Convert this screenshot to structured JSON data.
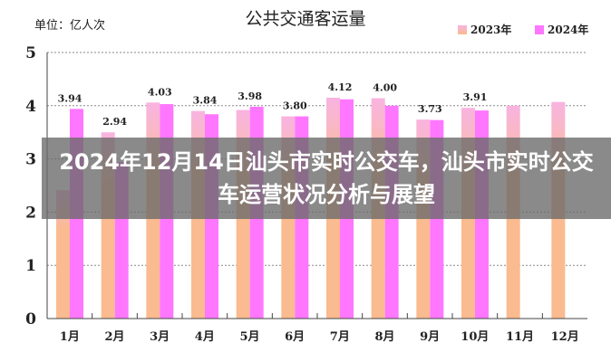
{
  "chart_data": {
    "type": "bar",
    "title": "公共交通客运量",
    "unit_label": "单位：亿人次",
    "categories": [
      "1月",
      "2月",
      "3月",
      "4月",
      "5月",
      "6月",
      "7月",
      "8月",
      "9月",
      "10月",
      "11月",
      "12月"
    ],
    "series": [
      {
        "name": "2023年",
        "color": "#f9b8c8",
        "values": [
          2.41,
          3.5,
          4.06,
          3.9,
          3.92,
          3.8,
          4.15,
          4.14,
          3.74,
          3.96,
          4.0,
          4.07
        ]
      },
      {
        "name": "2024年",
        "color": "#ff77ff",
        "values": [
          3.94,
          2.94,
          4.03,
          3.84,
          3.98,
          3.8,
          4.12,
          4.0,
          3.73,
          3.91,
          null,
          null
        ],
        "data_labels": [
          "3.94",
          "2.94",
          "4.03",
          "3.84",
          "3.98",
          "3.80",
          "4.12",
          "4.00",
          "3.73",
          "3.91"
        ]
      }
    ],
    "yticks": [
      "0",
      "1",
      "2",
      "3",
      "4",
      "5"
    ],
    "ylim": [
      0,
      5
    ],
    "grid": true,
    "legend": "top-right"
  },
  "overlay": {
    "headline": "2024年12月14日汕头市实时公交车，汕头市实时公交车运营状况分析与展望"
  }
}
